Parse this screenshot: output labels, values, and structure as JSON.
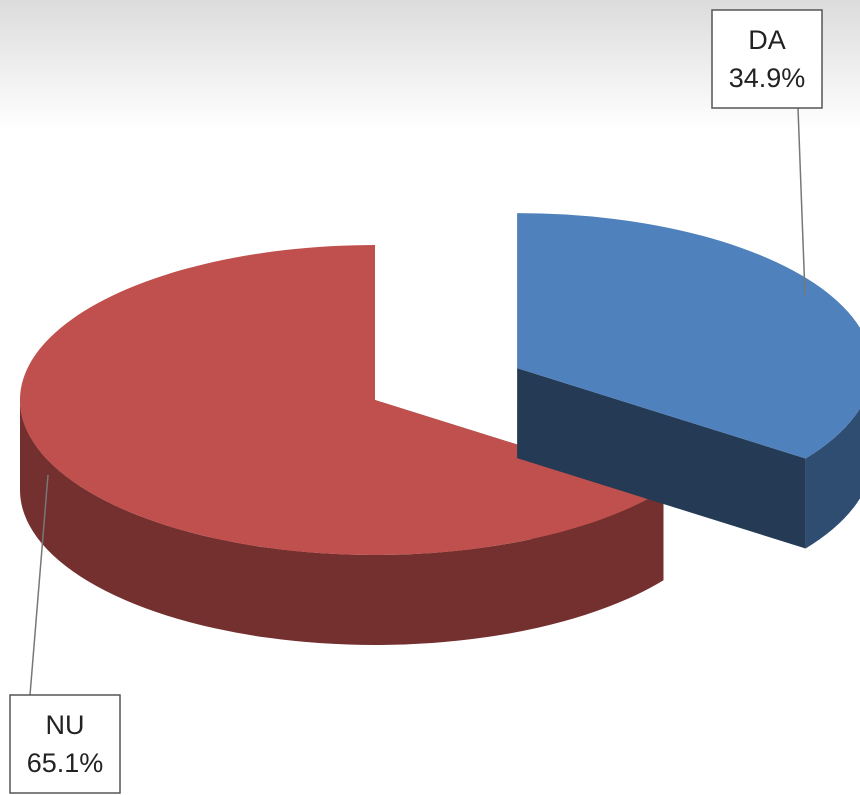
{
  "chart_data": {
    "type": "pie3d",
    "categories": [
      "DA",
      "NU"
    ],
    "values": [
      34.9,
      65.1
    ],
    "value_labels": [
      "34.9%",
      "65.1%"
    ],
    "colors": [
      "#4f81bd",
      "#c0504d"
    ]
  }
}
